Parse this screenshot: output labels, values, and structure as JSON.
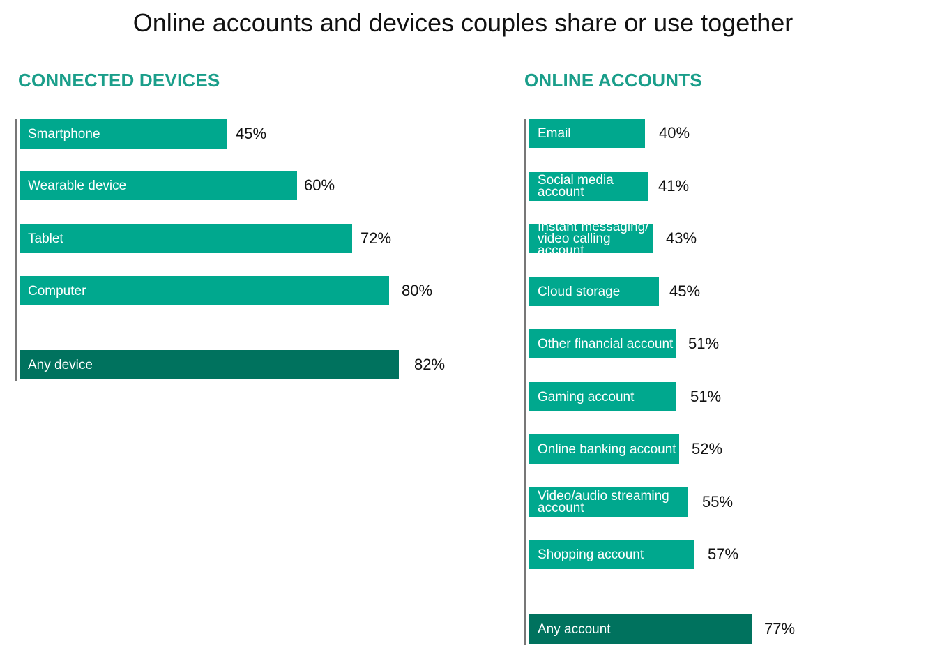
{
  "title": "Online accounts and devices couples share or use together",
  "colors": {
    "bar": "#00a88e",
    "total_bar": "#00725e",
    "section_title": "#1a9e8a",
    "axis": "#777777"
  },
  "chart_data": [
    {
      "type": "bar",
      "orientation": "horizontal",
      "title": "CONNECTED DEVICES",
      "categories": [
        "Smartphone",
        "Wearable device",
        "Tablet",
        "Computer",
        "Any device"
      ],
      "values": [
        45,
        60,
        72,
        80,
        82
      ],
      "value_labels": [
        "45%",
        "60%",
        "72%",
        "80%",
        "82%"
      ],
      "highlight": [
        false,
        false,
        false,
        false,
        true
      ],
      "unit": "%",
      "xlim": [
        0,
        100
      ],
      "grid": false
    },
    {
      "type": "bar",
      "orientation": "horizontal",
      "title": "ONLINE ACCOUNTS",
      "categories": [
        "Email",
        "Social media\naccount",
        "Instant messaging/\nvideo calling account",
        "Cloud storage",
        "Other financial account",
        "Gaming account",
        "Online banking account",
        "Video/audio streaming account",
        "Shopping account",
        "Any account"
      ],
      "values": [
        40,
        41,
        43,
        45,
        51,
        51,
        52,
        55,
        57,
        77
      ],
      "value_labels": [
        "40%",
        "41%",
        "43%",
        "45%",
        "51%",
        "51%",
        "52%",
        "55%",
        "57%",
        "77%"
      ],
      "highlight": [
        false,
        false,
        false,
        false,
        false,
        false,
        false,
        false,
        false,
        true
      ],
      "unit": "%",
      "xlim": [
        0,
        100
      ],
      "grid": false
    }
  ]
}
